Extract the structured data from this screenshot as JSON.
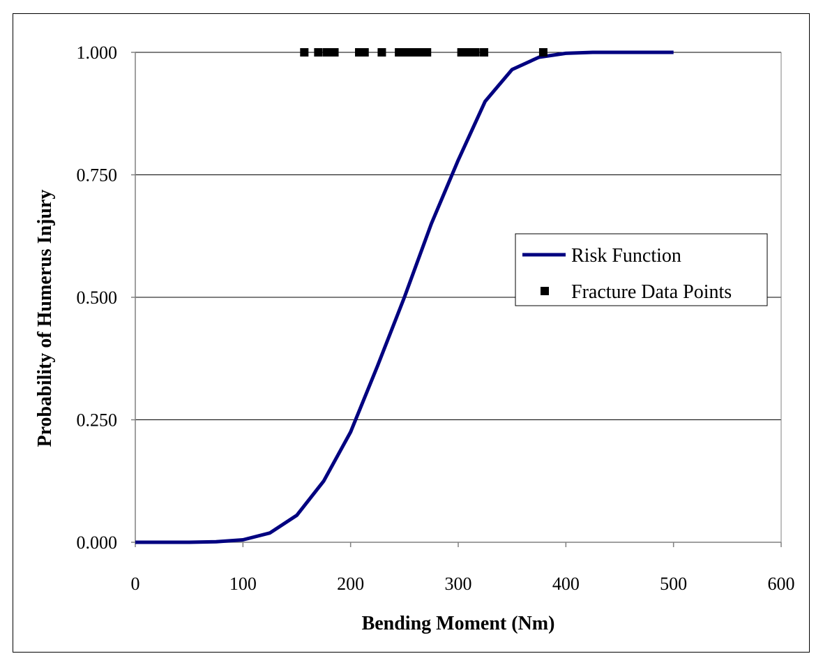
{
  "chart_data": {
    "type": "scatter",
    "title": "",
    "xlabel": "Bending Moment (Nm)",
    "ylabel": "Probability of Humerus Injury",
    "xlim": [
      0,
      600
    ],
    "ylim": [
      0,
      1
    ],
    "x_ticks": [
      0,
      100,
      200,
      300,
      400,
      500,
      600
    ],
    "x_tick_labels": [
      "0",
      "100",
      "200",
      "300",
      "400",
      "500",
      "600"
    ],
    "y_ticks": [
      0,
      0.25,
      0.5,
      0.75,
      1.0
    ],
    "y_tick_labels": [
      "0.000",
      "0.250",
      "0.500",
      "0.750",
      "1.000"
    ],
    "grid": {
      "horizontal": true,
      "vertical": false
    },
    "legend_position": "right-middle",
    "series": [
      {
        "name": "Risk Function",
        "kind": "line",
        "color": "#000080",
        "points": [
          [
            0,
            0.0
          ],
          [
            50,
            0.0
          ],
          [
            75,
            0.001
          ],
          [
            100,
            0.005
          ],
          [
            125,
            0.019
          ],
          [
            150,
            0.055
          ],
          [
            175,
            0.125
          ],
          [
            200,
            0.225
          ],
          [
            225,
            0.36
          ],
          [
            250,
            0.5
          ],
          [
            275,
            0.65
          ],
          [
            300,
            0.78
          ],
          [
            325,
            0.9
          ],
          [
            350,
            0.965
          ],
          [
            375,
            0.99
          ],
          [
            400,
            0.998
          ],
          [
            425,
            1.0
          ],
          [
            450,
            1.0
          ],
          [
            475,
            1.0
          ],
          [
            500,
            1.0
          ]
        ]
      },
      {
        "name": "Fracture Data Points",
        "kind": "markers",
        "color": "#000000",
        "marker": "square",
        "points": [
          [
            157,
            1.0
          ],
          [
            170,
            1.0
          ],
          [
            178,
            1.0
          ],
          [
            185,
            1.0
          ],
          [
            208,
            1.0
          ],
          [
            213,
            1.0
          ],
          [
            229,
            1.0
          ],
          [
            245,
            1.0
          ],
          [
            251,
            1.0
          ],
          [
            258,
            1.0
          ],
          [
            264,
            1.0
          ],
          [
            271,
            1.0
          ],
          [
            303,
            1.0
          ],
          [
            310,
            1.0
          ],
          [
            316,
            1.0
          ],
          [
            324,
            1.0
          ],
          [
            379,
            1.0
          ]
        ]
      }
    ]
  }
}
